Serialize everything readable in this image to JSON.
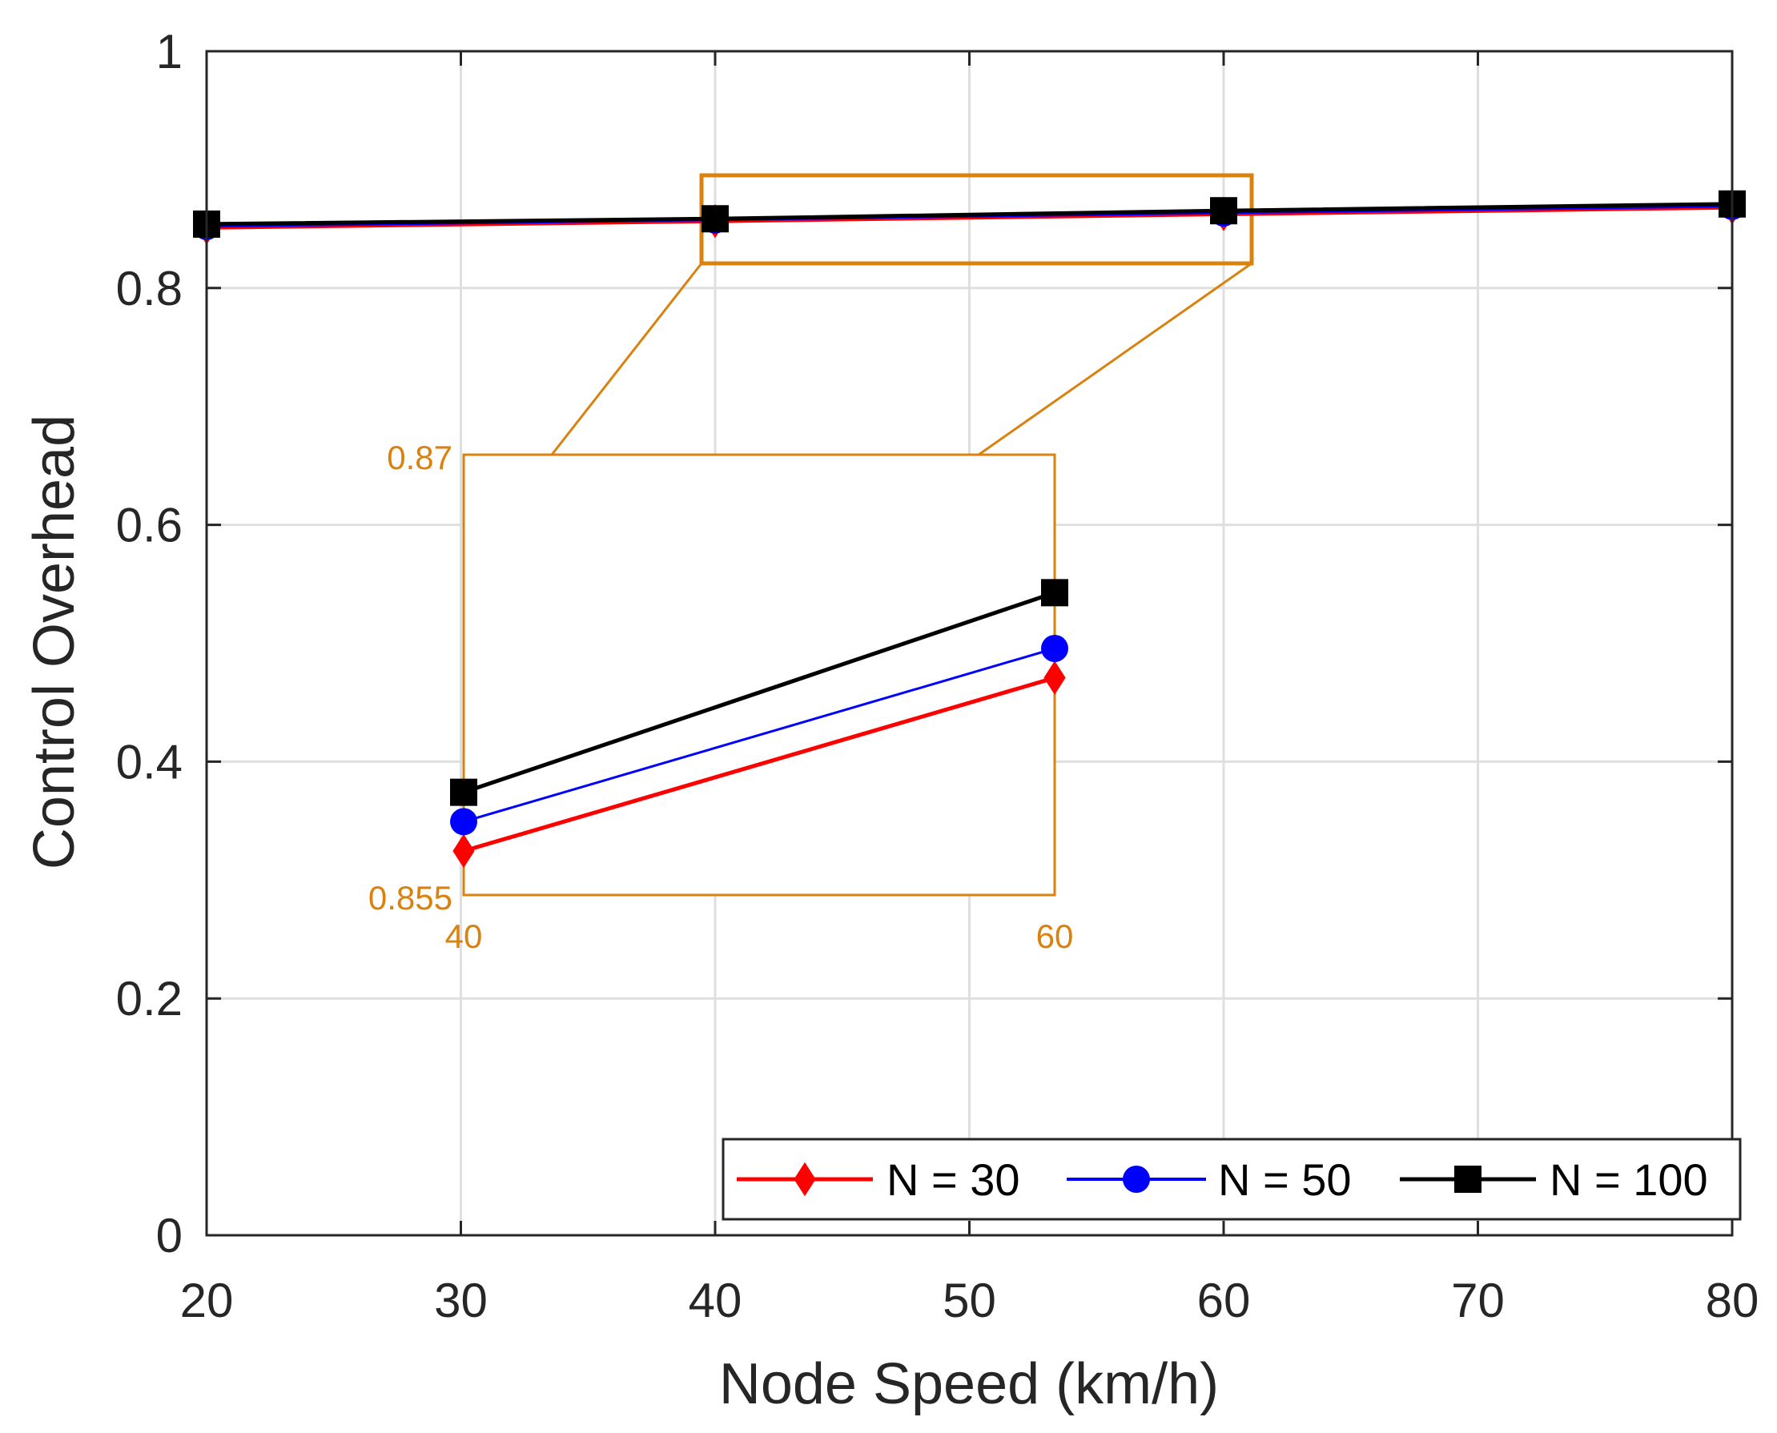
{
  "chart_data": {
    "type": "line",
    "title": "",
    "xlabel": "Node Speed (km/h)",
    "ylabel": "Control Overhead",
    "xlim": [
      20,
      80
    ],
    "ylim": [
      0,
      1
    ],
    "grid": true,
    "x_ticks": [
      "20",
      "30",
      "40",
      "50",
      "60",
      "70",
      "80"
    ],
    "y_ticks": [
      "0",
      "0.2",
      "0.4",
      "0.6",
      "0.8",
      "1"
    ],
    "x": [
      20,
      40,
      60,
      80
    ],
    "series": [
      {
        "name": "N = 30",
        "color": "#FF0000",
        "marker": "diamond",
        "values": [
          0.851,
          0.8565,
          0.8624,
          0.868
        ]
      },
      {
        "name": "N = 50",
        "color": "#0000FF",
        "marker": "circle",
        "values": [
          0.852,
          0.8575,
          0.8634,
          0.869
        ]
      },
      {
        "name": "N = 100",
        "color": "#000000",
        "marker": "square",
        "values": [
          0.854,
          0.8585,
          0.8653,
          0.871
        ]
      }
    ],
    "legend_position": "bottom-right",
    "zoom_box": {
      "xlim": [
        40,
        60
      ],
      "ylim": [
        0.855,
        0.87
      ],
      "color": "#D9820F"
    },
    "inset": {
      "x_ticks": [
        "40",
        "60"
      ],
      "y_ticks": [
        "0.87",
        "0.855"
      ],
      "xlim": [
        40,
        60
      ],
      "ylim": [
        0.855,
        0.87
      ]
    }
  }
}
